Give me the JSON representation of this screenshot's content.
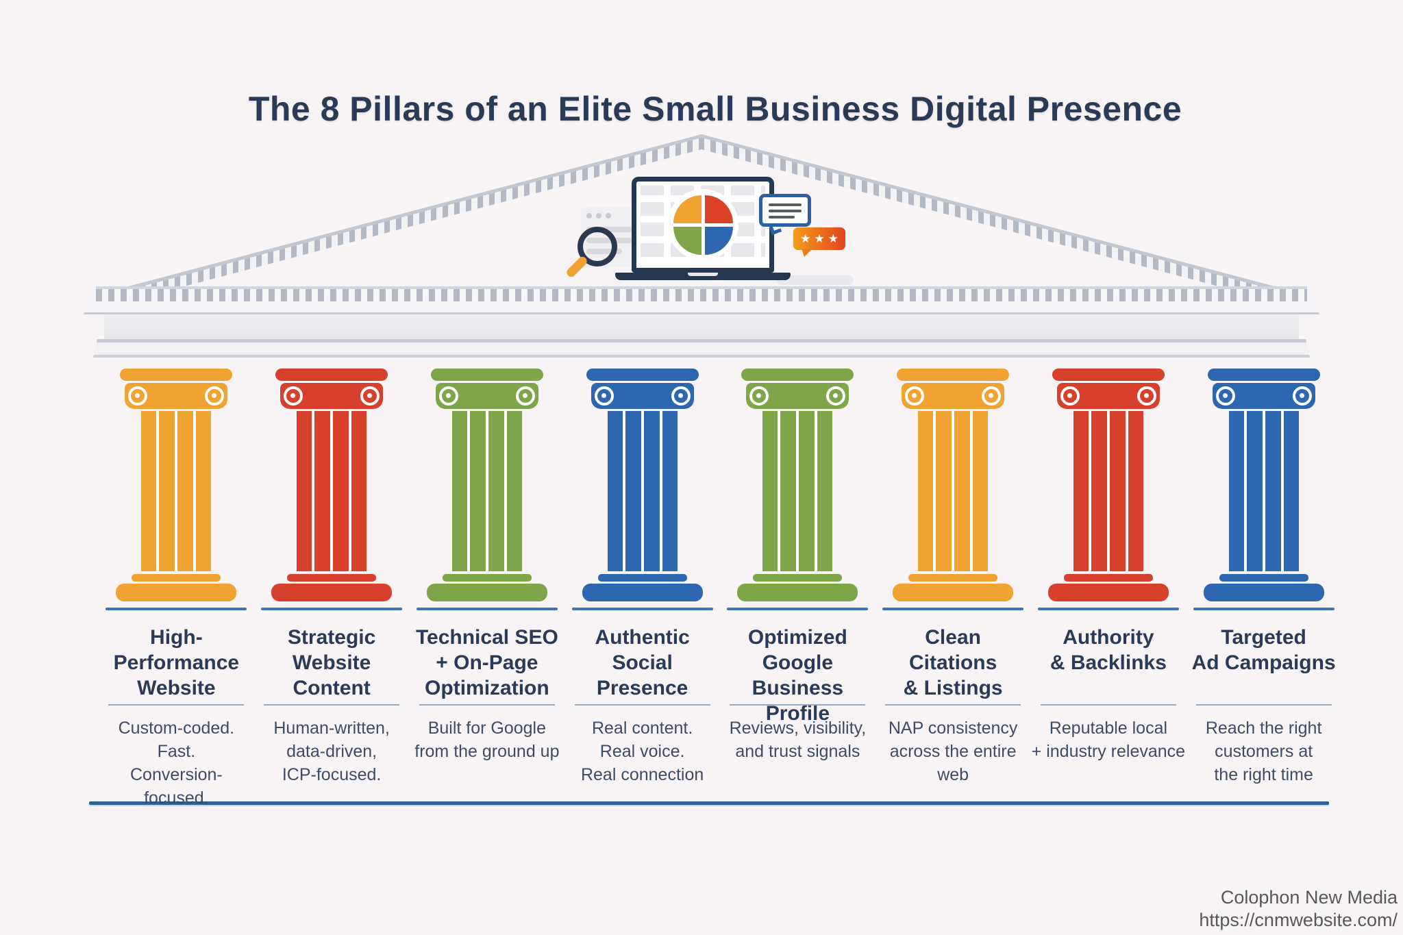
{
  "title": "The 8 Pillars of an Elite Small Business Digital Presence",
  "illustration": {
    "stars": "★★★",
    "icons": [
      "browser-window-icon",
      "magnifying-glass-icon",
      "laptop-icon",
      "pie-chart-icon",
      "speech-bubble-icon",
      "star-rating-icon"
    ]
  },
  "pillars": [
    {
      "title": "High-\nPerformance\nWebsite",
      "description": "Custom-coded.\nFast.\nConversion-focused.",
      "color": "#f0a233"
    },
    {
      "title": "Strategic\nWebsite\nContent",
      "description": "Human-written,\ndata-driven,\nICP-focused.",
      "color": "#d7402c"
    },
    {
      "title": "Technical SEO\n+ On-Page\nOptimization",
      "description": "Built for Google\nfrom the ground up",
      "color": "#7ca647"
    },
    {
      "title": "Authentic\nSocial\nPresence",
      "description": "Real content.\nReal voice.\nReal connection",
      "color": "#2e67b1"
    },
    {
      "title": "Optimized\nGoogle\nBusiness Profile",
      "description": "Reviews, visibility,\nand trust signals",
      "color": "#7ca647"
    },
    {
      "title": "Clean\nCitations\n& Listings",
      "description": "NAP consistency\nacross the entire\nweb",
      "color": "#f0a233"
    },
    {
      "title": "Authority\n& Backlinks",
      "description": "Reputable local\n+ industry relevance",
      "color": "#d7402c"
    },
    {
      "title": "Targeted\nAd Campaigns",
      "description": "Reach the right\ncustomers at\nthe right time",
      "color": "#2e67b1"
    }
  ],
  "footer": {
    "company": "Colophon New Media",
    "url": "https://cnmwebsite.com/"
  },
  "colors": {
    "background": "#f8f4f5",
    "title_navy": "#2b3a56",
    "body_text": "#3f4b62",
    "divider_blue_gray": "#94aac3",
    "column_underline_blue": "#3d74b2",
    "baseline_navy": "#2e5f97",
    "footer_gray": "#54585e",
    "pillar_orange": "#f0a233",
    "pillar_red": "#d7402c",
    "pillar_green": "#7ca647",
    "pillar_blue": "#2e67b1",
    "stone_outline": "#c3c7d0",
    "stone_dentil": "#b4b9c4",
    "stone_light": "#f2f2f5",
    "laptop_navy": "#243950",
    "bubble_blue": "#2b5fa6",
    "bubble_line": "#555a61",
    "card_gray": "#efeef1",
    "card_line": "#d9d8dd",
    "star_bubble_start": "#f39d1d",
    "star_bubble_end": "#e2451d",
    "pie_tl": "#f0a233",
    "pie_tr": "#db4328",
    "pie_bl": "#7ca647",
    "pie_br": "#2e67b1"
  }
}
